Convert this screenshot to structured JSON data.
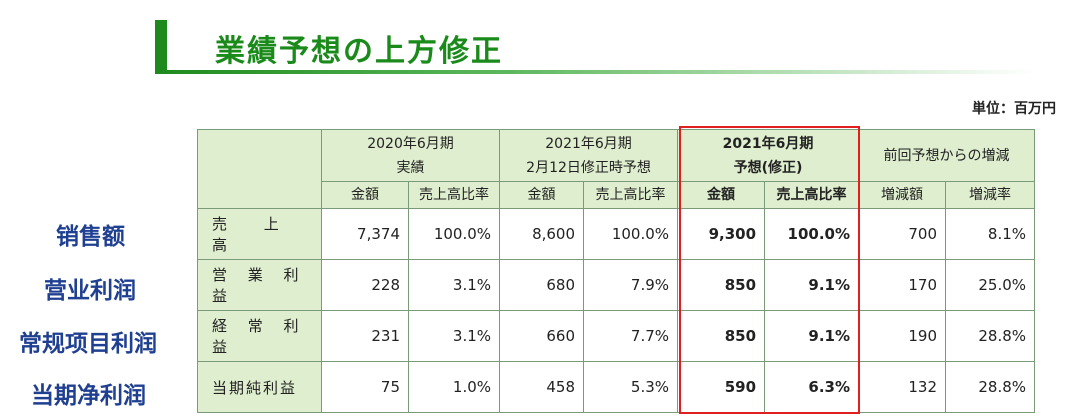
{
  "title": "業績予想の上方修正",
  "unit": "単位：百万円",
  "side_labels": [
    "销售额",
    "营业利润",
    "常规项目利润",
    "当期净利润"
  ],
  "headers": {
    "group1_line1": "2020年6月期",
    "group1_line2": "実績",
    "group2_line1": "2021年6月期",
    "group2_line2": "2月12日修正時予想",
    "group3_line1": "2021年6月期",
    "group3_line2": "予想(修正)",
    "group4": "前回予想からの増減",
    "amount": "金額",
    "ratio": "売上高比率",
    "change_amount": "増減額",
    "change_rate": "増減率"
  },
  "rows": [
    {
      "label": "売 上 高",
      "c1": "7,374",
      "c2": "100.0%",
      "c3": "8,600",
      "c4": "100.0%",
      "c5": "9,300",
      "c6": "100.0%",
      "c7": "700",
      "c8": "8.1%"
    },
    {
      "label": "営 業 利 益",
      "c1": "228",
      "c2": "3.1%",
      "c3": "680",
      "c4": "7.9%",
      "c5": "850",
      "c6": "9.1%",
      "c7": "170",
      "c8": "25.0%"
    },
    {
      "label": "経 常 利 益",
      "c1": "231",
      "c2": "3.1%",
      "c3": "660",
      "c4": "7.7%",
      "c5": "850",
      "c6": "9.1%",
      "c7": "190",
      "c8": "28.8%"
    },
    {
      "label": "当期純利益",
      "c1": "75",
      "c2": "1.0%",
      "c3": "458",
      "c4": "5.3%",
      "c5": "590",
      "c6": "6.3%",
      "c7": "132",
      "c8": "28.8%"
    }
  ],
  "colors": {
    "title_green": "#1a8a1a",
    "header_fill": "#dfeecf",
    "side_label_blue": "#1f3f91",
    "highlight_red": "#e02020"
  }
}
